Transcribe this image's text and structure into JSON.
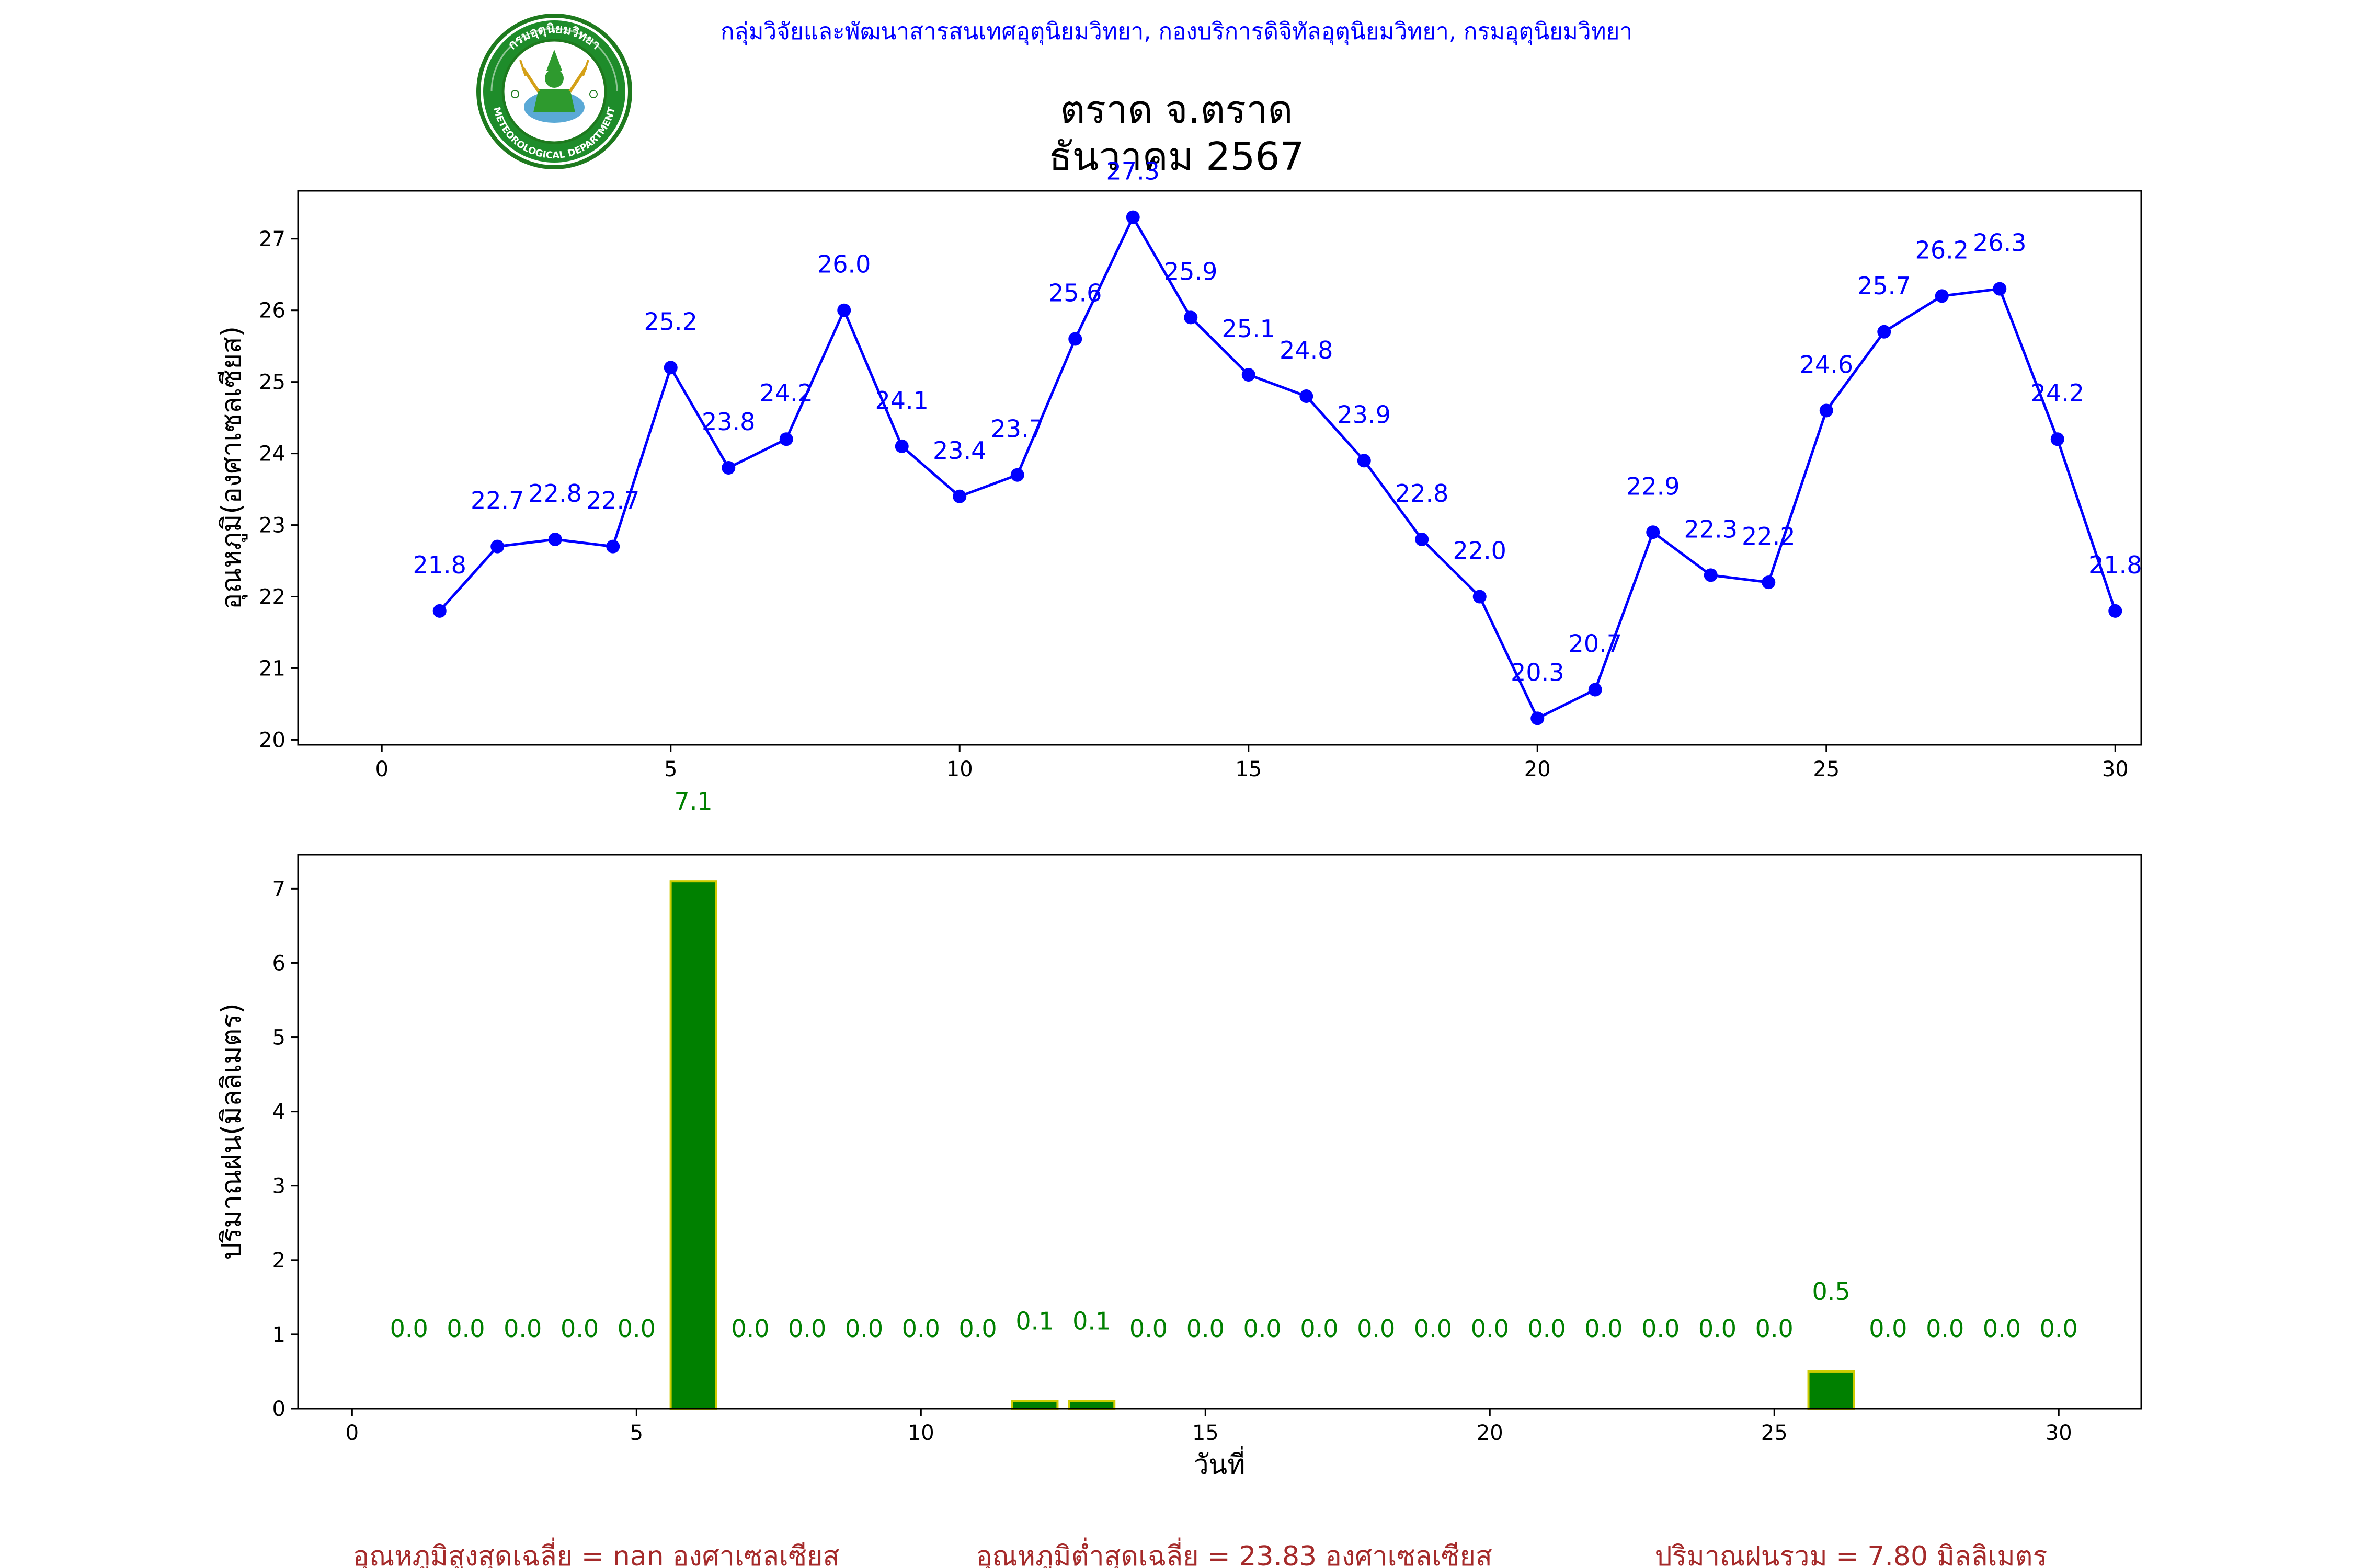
{
  "header": {
    "department_line": "กลุ่มวิจัยและพัฒนาสารสนเทศอุตุนิยมวิทยา, กองบริการดิจิทัลอุตุนิยมวิทยา, กรมอุตุนิยมวิทยา",
    "title_line1": "ตราด จ.ตราด",
    "title_line2": "ธันวาคม 2567",
    "logo": {
      "icon": "meteorological-department-seal-icon",
      "ring_text_top": "กรมอุตุนิยมวิทยา",
      "ring_text_bottom": "METEOROLOGICAL DEPARTMENT"
    }
  },
  "colors": {
    "temperature": "#0000ff",
    "rain_fill": "#008000",
    "rain_edge": "#cccc00",
    "header_text": "#0000ff",
    "footer_text": "#a52a2a"
  },
  "chart_data": [
    {
      "type": "line",
      "x": [
        1,
        2,
        3,
        4,
        5,
        6,
        7,
        8,
        9,
        10,
        11,
        12,
        13,
        14,
        15,
        16,
        17,
        18,
        19,
        20,
        21,
        22,
        23,
        24,
        25,
        26,
        27,
        28,
        29,
        30
      ],
      "series": [
        {
          "values": [
            21.8,
            22.7,
            22.8,
            22.7,
            25.2,
            23.8,
            24.2,
            26.0,
            24.1,
            23.4,
            23.7,
            25.6,
            27.3,
            25.9,
            25.1,
            24.8,
            23.9,
            22.8,
            22.0,
            20.3,
            20.7,
            22.9,
            22.3,
            22.2,
            24.6,
            25.7,
            26.2,
            26.3,
            24.2,
            21.8
          ],
          "labels": [
            "21.8",
            "22.7",
            "22.8",
            "22.7",
            "25.2",
            "23.8",
            "24.2",
            "26.0",
            "24.1",
            "23.4",
            "23.7",
            "25.6",
            "27.3",
            "25.9",
            "25.1",
            "24.8",
            "23.9",
            "22.8",
            "22.0",
            "20.3",
            "20.7",
            "22.9",
            "22.3",
            "22.2",
            "24.6",
            "25.7",
            "26.2",
            "26.3",
            "24.2",
            "21.8"
          ]
        }
      ],
      "xlabel": "",
      "ylabel": "อุณหภูมิ(องศาเซลเซียส)",
      "xlim": [
        -1.45,
        30.45
      ],
      "ylim": [
        19.93,
        27.67
      ],
      "xticks": [
        0,
        5,
        10,
        15,
        20,
        25,
        30
      ],
      "yticks": [
        20,
        21,
        22,
        23,
        24,
        25,
        26,
        27
      ],
      "grid": false,
      "marker": "circle"
    },
    {
      "type": "bar",
      "x": [
        1,
        2,
        3,
        4,
        5,
        6,
        7,
        8,
        9,
        10,
        11,
        12,
        13,
        14,
        15,
        16,
        17,
        18,
        19,
        20,
        21,
        22,
        23,
        24,
        25,
        26,
        27,
        28,
        29,
        30
      ],
      "values": [
        0.0,
        0.0,
        0.0,
        0.0,
        0.0,
        7.1,
        0.0,
        0.0,
        0.0,
        0.0,
        0.0,
        0.1,
        0.1,
        0.0,
        0.0,
        0.0,
        0.0,
        0.0,
        0.0,
        0.0,
        0.0,
        0.0,
        0.0,
        0.0,
        0.0,
        0.5,
        0.0,
        0.0,
        0.0,
        0.0
      ],
      "labels": [
        "0.0",
        "0.0",
        "0.0",
        "0.0",
        "0.0",
        "7.1",
        "0.0",
        "0.0",
        "0.0",
        "0.0",
        "0.0",
        "0.1",
        "0.1",
        "0.0",
        "0.0",
        "0.0",
        "0.0",
        "0.0",
        "0.0",
        "0.0",
        "0.0",
        "0.0",
        "0.0",
        "0.0",
        "0.0",
        "0.5",
        "0.0",
        "0.0",
        "0.0",
        "0.0"
      ],
      "xlabel": "วันที่",
      "ylabel": "ปริมาณฝน(มิลลิเมตร)",
      "xlim": [
        -0.95,
        31.45
      ],
      "ylim": [
        0,
        7.46
      ],
      "xticks": [
        0,
        5,
        10,
        15,
        20,
        25,
        30
      ],
      "yticks": [
        0,
        1,
        2,
        3,
        4,
        5,
        6,
        7
      ],
      "grid": false
    }
  ],
  "footer": {
    "avg_max_temp": "อุณหภูมิสูงสุดเฉลี่ย = nan องศาเซลเซียส",
    "avg_min_temp": "อุณหภูมิต่ำสุดเฉลี่ย = 23.83 องศาเซลเซียส",
    "total_rain": "ปริมาณฝนรวม = 7.80 มิลลิเมตร"
  }
}
